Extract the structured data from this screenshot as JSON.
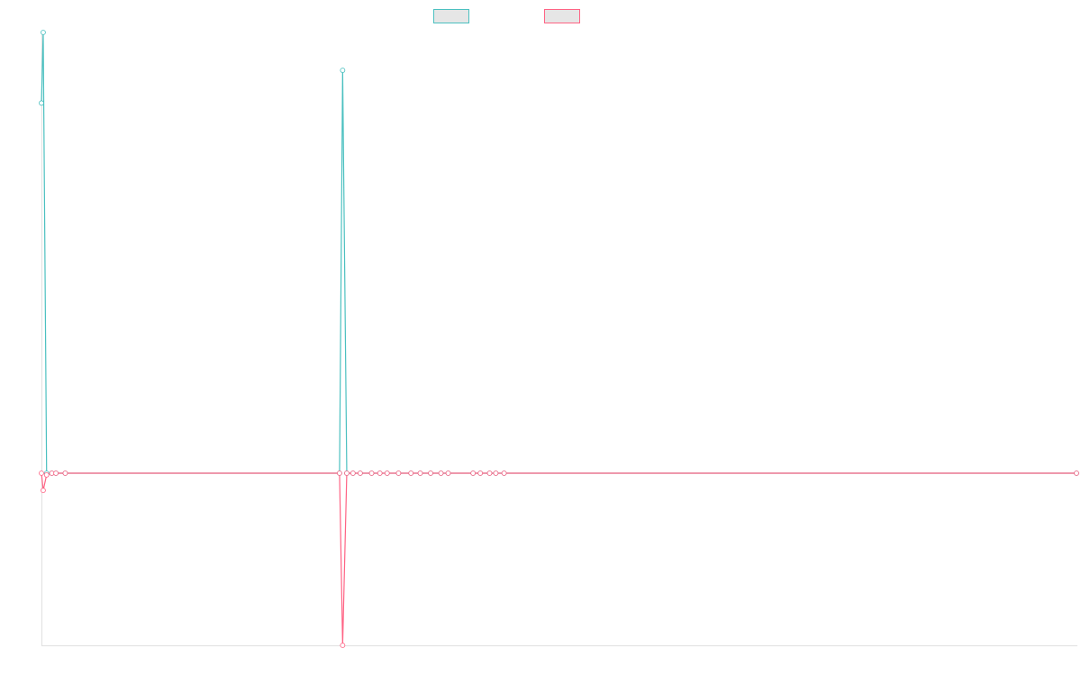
{
  "chart_data": {
    "type": "line",
    "x": [
      0,
      0.17,
      0.5,
      1,
      1.4,
      2.3,
      28.8,
      29.1,
      29.5,
      30.1,
      30.8,
      31.9,
      32.7,
      33.4,
      34.5,
      35.7,
      36.6,
      37.6,
      38.6,
      39.3,
      41.7,
      42.4,
      43.3,
      43.9,
      44.7,
      100
    ],
    "series": [
      {
        "color": "#4bc0c0",
        "values": [
          215,
          256,
          0,
          0,
          0,
          0,
          0,
          234,
          0,
          0,
          0,
          0,
          0,
          0,
          0,
          0,
          0,
          0,
          0,
          0,
          0,
          0,
          0,
          0,
          0,
          0
        ]
      },
      {
        "color": "#ff6384",
        "values": [
          0,
          -10,
          -1,
          0,
          0,
          0,
          0,
          -100,
          0,
          0,
          0,
          0,
          0,
          0,
          0,
          0,
          0,
          0,
          0,
          0,
          0,
          0,
          0,
          0,
          0,
          0
        ]
      }
    ],
    "xlim": [
      0,
      100
    ],
    "ylim": [
      -100,
      256
    ],
    "legend": "top"
  }
}
